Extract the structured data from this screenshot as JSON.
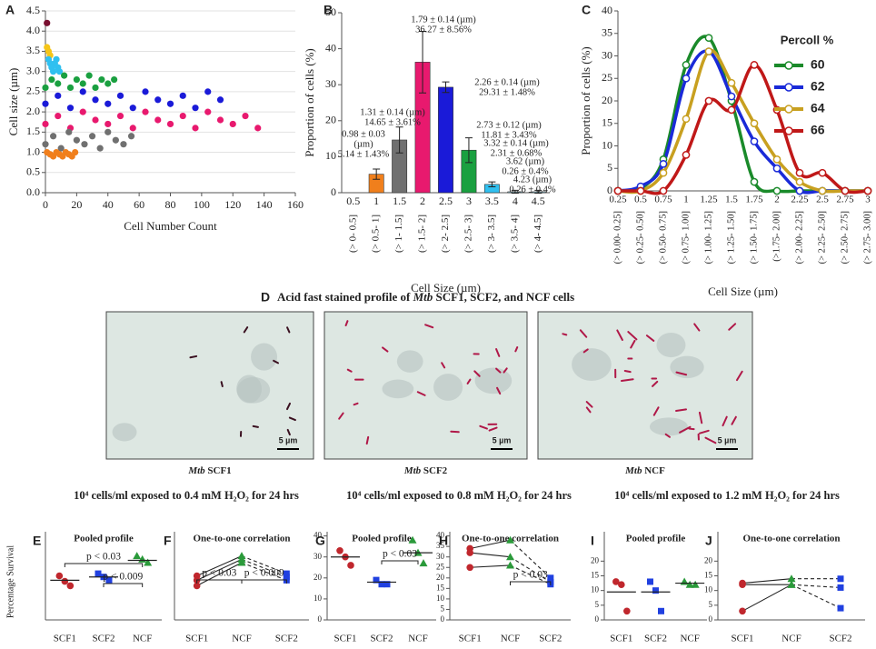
{
  "chart_data": [
    {
      "panel": "A",
      "type": "scatter",
      "ylabel": "Cell size (µm)",
      "xlabel": "Cell Number Count",
      "grid": true,
      "xlim": [
        0,
        160
      ],
      "xticks": [
        0,
        20,
        40,
        60,
        80,
        100,
        120,
        140,
        160
      ],
      "ylim": [
        0,
        4.5
      ],
      "yticks": [
        {
          "value": 0,
          "label": "0.0"
        },
        0.5,
        {
          "value": 1,
          "label": "1.0"
        },
        1.5,
        {
          "value": 2,
          "label": "2.0"
        },
        2.5,
        {
          "value": 3,
          "label": "3.0"
        },
        3.5,
        {
          "value": 4,
          "label": "4.0"
        },
        4.5
      ],
      "series": [
        {
          "color": "#7a1030",
          "x": [
            1
          ],
          "y": [
            4.2
          ]
        },
        {
          "color": "#f5c518",
          "x": [
            1,
            2,
            3
          ],
          "y": [
            3.6,
            3.5,
            3.4
          ]
        },
        {
          "color": "#30c0f0",
          "x": [
            2,
            3,
            4,
            5,
            6,
            7,
            8,
            9
          ],
          "y": [
            3.3,
            3.2,
            3.1,
            3.0,
            3.2,
            3.3,
            3.1,
            3.0
          ]
        },
        {
          "color": "#1aa040",
          "x": [
            0,
            4,
            8,
            12,
            16,
            20,
            24,
            28,
            32,
            36,
            40,
            44
          ],
          "y": [
            2.6,
            2.8,
            2.7,
            2.9,
            2.6,
            2.8,
            2.7,
            2.9,
            2.6,
            2.8,
            2.7,
            2.8
          ]
        },
        {
          "color": "#1a1ad8",
          "x": [
            0,
            8,
            16,
            24,
            32,
            40,
            48,
            56,
            64,
            72,
            80,
            88,
            96,
            104,
            112
          ],
          "y": [
            2.2,
            2.4,
            2.1,
            2.5,
            2.3,
            2.2,
            2.4,
            2.1,
            2.5,
            2.3,
            2.2,
            2.4,
            2.1,
            2.5,
            2.3
          ]
        },
        {
          "color": "#e8196e",
          "x": [
            0,
            8,
            16,
            24,
            32,
            40,
            48,
            56,
            64,
            72,
            80,
            88,
            96,
            104,
            112,
            120,
            128,
            136
          ],
          "y": [
            1.7,
            1.9,
            1.6,
            2.0,
            1.8,
            1.7,
            1.9,
            1.6,
            2.0,
            1.8,
            1.7,
            1.9,
            1.6,
            2.0,
            1.8,
            1.7,
            1.9,
            1.6
          ]
        },
        {
          "color": "#707070",
          "x": [
            0,
            5,
            10,
            15,
            20,
            25,
            30,
            35,
            40,
            45,
            50,
            55
          ],
          "y": [
            1.2,
            1.4,
            1.1,
            1.5,
            1.3,
            1.2,
            1.4,
            1.1,
            1.5,
            1.3,
            1.2,
            1.4
          ]
        },
        {
          "color": "#f07f1c",
          "x": [
            1,
            3,
            5,
            7,
            9,
            11,
            13,
            15,
            17,
            19
          ],
          "y": [
            1.0,
            0.95,
            0.9,
            1.0,
            0.95,
            0.9,
            1.0,
            0.95,
            0.9,
            1.0
          ]
        }
      ]
    },
    {
      "panel": "B",
      "type": "bar",
      "ylabel": "Proportion of cells (%)",
      "xlabel": "Cell Size (µm)",
      "categories": [
        "0.5",
        "1",
        "1.5",
        "2",
        "2.5",
        "3",
        "3.5",
        "4",
        "4.5"
      ],
      "sublabels": [
        "(> 0- 0.5]",
        "(> 0.5- 1]",
        "(> 1- 1.5]",
        "(> 1.5- 2]",
        "(> 2- 2.5]",
        "(> 2.5- 3]",
        "(> 3- 3.5]",
        "(> 3.5- 4]",
        "(> 4- 4.5]"
      ],
      "values": [
        0,
        5.14,
        14.65,
        36.27,
        29.31,
        11.81,
        2.31,
        0.26,
        0.26
      ],
      "errors": [
        0,
        1.43,
        3.61,
        8.56,
        1.48,
        3.43,
        0.68,
        0.4,
        0.4
      ],
      "colors": [
        "#f07f1c",
        "#f07f1c",
        "#707070",
        "#e8196e",
        "#1a1ad8",
        "#1aa040",
        "#30c0f0",
        "#9ad8e8",
        "#9ad8e8"
      ],
      "ylim": [
        0,
        50
      ],
      "yticks": [
        0,
        10,
        20,
        30,
        40,
        50
      ],
      "annotations": [
        [
          "0.98 ± 0.03",
          "(µm)",
          "5.14 ± 1.43%"
        ],
        [
          "1.31 ± 0.14 (µm)",
          "14.65 ± 3.61%"
        ],
        [
          "1.79 ± 0.14 (µm)",
          "36.27 ± 8.56%"
        ],
        [
          "2.26 ± 0.14 (µm)",
          "29.31 ± 1.48%"
        ],
        [
          "2.73 ± 0.12 (µm)",
          "11.81 ± 3.43%"
        ],
        [
          "3.32 ± 0.14 (µm)",
          "2.31 ± 0.68%"
        ],
        [
          "3.62 (µm)",
          "0.26 ± 0.4%"
        ],
        [
          "4.23 (µm)",
          "0.26 ± 0.4%"
        ]
      ]
    },
    {
      "panel": "C",
      "type": "line",
      "ylabel": "Proportion of cells (%)",
      "xlabel": "Cell Size (µm)",
      "categories": [
        "0.25",
        "0.5",
        "0.75",
        "1",
        "1.25",
        "1.5",
        "1.75",
        "2",
        "2.25",
        "2.5",
        "2.75",
        "3"
      ],
      "sublabels": [
        "(> 0.00- 0.25]",
        "(> 0.25- 0.50]",
        "(> 0.50- 0.75]",
        "(> 0.75- 1.00]",
        "(> 1.00- 1.25]",
        "(> 1.25- 1.50]",
        "(> 1.50- 1.75]",
        "(>1.75- 2.00]",
        "(> 2.00- 2.25]",
        "(> 2.25- 2.50]",
        "(> 2.50- 2.75]",
        "(> 2.75- 3.00]"
      ],
      "ylim": [
        0,
        40
      ],
      "yticks": [
        0,
        5,
        10,
        15,
        20,
        25,
        30,
        35,
        40
      ],
      "legend_title": "Percoll %",
      "series": [
        {
          "name": "60",
          "color": "#1a8a2a",
          "values": [
            0,
            0.5,
            7,
            28,
            34,
            20,
            2,
            0,
            0,
            0,
            0,
            0
          ]
        },
        {
          "name": "62",
          "color": "#1a2ad8",
          "values": [
            0,
            1,
            6,
            25,
            31,
            21,
            11,
            5,
            0,
            0,
            0,
            0
          ]
        },
        {
          "name": "64",
          "color": "#c8a020",
          "values": [
            0,
            0,
            4,
            16,
            31,
            24,
            15,
            7,
            2,
            0,
            0,
            0
          ]
        },
        {
          "name": "66",
          "color": "#c01818",
          "values": [
            0,
            0,
            0,
            8,
            20,
            18,
            28,
            18,
            4,
            4,
            0,
            0
          ]
        }
      ]
    },
    {
      "panel": "E",
      "type": "dot",
      "title": "Pooled profile",
      "ylabel": "Percentage Survival",
      "categories": [
        "SCF1",
        "SCF2",
        "NCF"
      ],
      "ylim": [
        0,
        80
      ],
      "series": [
        {
          "color": "#c0272d",
          "marker": "circle",
          "values": [
            40,
            35,
            31
          ]
        },
        {
          "color": "#2040e0",
          "marker": "square",
          "values": [
            42,
            39,
            36
          ]
        },
        {
          "color": "#2a9a3a",
          "marker": "triangle",
          "values": [
            58,
            55,
            52
          ]
        }
      ],
      "means": [
        36,
        39,
        54
      ],
      "annotations": [
        "p < 0.03",
        "p < 0.009"
      ]
    },
    {
      "panel": "F",
      "type": "paired",
      "title": "One-to-one correlation",
      "categories": [
        "SCF1",
        "NCF",
        "SCF2"
      ],
      "ylim": [
        0,
        80
      ],
      "category_colors": [
        "#c0272d",
        "#2a9a3a",
        "#2040e0"
      ],
      "category_markers": [
        "circle",
        "triangle",
        "square"
      ],
      "series": [
        {
          "values": [
            40,
            58,
            42
          ]
        },
        {
          "values": [
            36,
            55,
            39
          ]
        },
        {
          "values": [
            31,
            52,
            36
          ]
        }
      ],
      "annotations": [
        "p < 0.03",
        "p < 0.009"
      ]
    },
    {
      "panel": "G",
      "type": "dot",
      "title": "Pooled profile",
      "categories": [
        "SCF1",
        "SCF2",
        "NCF"
      ],
      "ylim": [
        0,
        42
      ],
      "yticks": [
        0,
        10,
        20,
        30,
        40
      ],
      "series": [
        {
          "color": "#c0272d",
          "marker": "circle",
          "values": [
            33,
            30,
            26
          ]
        },
        {
          "color": "#2040e0",
          "marker": "square",
          "values": [
            19,
            17,
            17
          ]
        },
        {
          "color": "#2a9a3a",
          "marker": "triangle",
          "values": [
            38,
            32,
            27
          ]
        }
      ],
      "means": [
        30,
        18,
        32
      ],
      "annotations": [
        "p < 0.03"
      ]
    },
    {
      "panel": "H",
      "type": "paired",
      "title": "One-to-one correlation",
      "categories": [
        "SCF1",
        "NCF",
        "SCF2"
      ],
      "ylim": [
        0,
        42
      ],
      "yticks": [
        0,
        5,
        10,
        15,
        20,
        25,
        30,
        35,
        40
      ],
      "category_colors": [
        "#c0272d",
        "#2a9a3a",
        "#2040e0"
      ],
      "category_markers": [
        "circle",
        "triangle",
        "square"
      ],
      "series": [
        {
          "values": [
            34,
            38,
            20
          ]
        },
        {
          "values": [
            32,
            30,
            18
          ]
        },
        {
          "values": [
            25,
            26,
            17
          ]
        }
      ],
      "annotations": [
        "p < 0.03"
      ]
    },
    {
      "panel": "I",
      "type": "dot",
      "title": "Pooled profile",
      "categories": [
        "SCF1",
        "SCF2",
        "NCF"
      ],
      "ylim": [
        0,
        30
      ],
      "yticks": [
        0,
        5,
        10,
        15,
        20
      ],
      "series": [
        {
          "color": "#c0272d",
          "marker": "circle",
          "values": [
            13,
            12,
            3
          ]
        },
        {
          "color": "#2040e0",
          "marker": "square",
          "values": [
            13,
            10,
            3
          ]
        },
        {
          "color": "#2a9a3a",
          "marker": "triangle",
          "values": [
            13,
            12,
            12
          ]
        }
      ],
      "means": [
        9.5,
        9.5,
        12.5
      ],
      "annotations": []
    },
    {
      "panel": "J",
      "type": "paired",
      "title": "One-to-one correlation",
      "categories": [
        "SCF1",
        "NCF",
        "SCF2"
      ],
      "ylim": [
        0,
        30
      ],
      "yticks": [
        0,
        5,
        10,
        15,
        20
      ],
      "category_colors": [
        "#c0272d",
        "#2a9a3a",
        "#2040e0"
      ],
      "category_markers": [
        "circle",
        "triangle",
        "square"
      ],
      "series": [
        {
          "values": [
            12.5,
            14,
            14
          ]
        },
        {
          "values": [
            12,
            12,
            11
          ]
        },
        {
          "values": [
            3,
            12,
            4
          ]
        }
      ],
      "annotations": []
    }
  ],
  "panel_d": {
    "panel": "D",
    "title_before": "Acid fast stained profile of ",
    "title_italic": "Mtb",
    "title_after": " SCF1, SCF2, and NCF cells",
    "images": [
      {
        "italic": "Mtb",
        "caption": " SCF1",
        "scale": "5 µm"
      },
      {
        "italic": "Mtb",
        "caption": " SCF2",
        "scale": "5 µm"
      },
      {
        "italic": "Mtb",
        "caption": " NCF",
        "scale": "5 µm"
      }
    ]
  },
  "row_headers": [
    "10⁴ cells/ml exposed to 0.4 mM H₂O₂ for 24 hrs",
    "10⁴ cells/ml exposed to 0.8 mM H₂O₂ for 24 hrs",
    "10⁴ cells/ml exposed to 1.2 mM H₂O₂ for 24 hrs"
  ]
}
